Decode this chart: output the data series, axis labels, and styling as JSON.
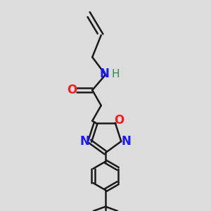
{
  "bg_color": "#dcdcdc",
  "line_color": "#1a1a1a",
  "bond_width": 1.8,
  "font_size": 11,
  "N_color": "#1a1aff",
  "O_color": "#ff1a1a",
  "H_color": "#2e8b57",
  "figsize": [
    3.0,
    3.0
  ],
  "dpi": 100,
  "xlim": [
    0.2,
    0.8
  ],
  "ylim": [
    0.02,
    0.98
  ]
}
